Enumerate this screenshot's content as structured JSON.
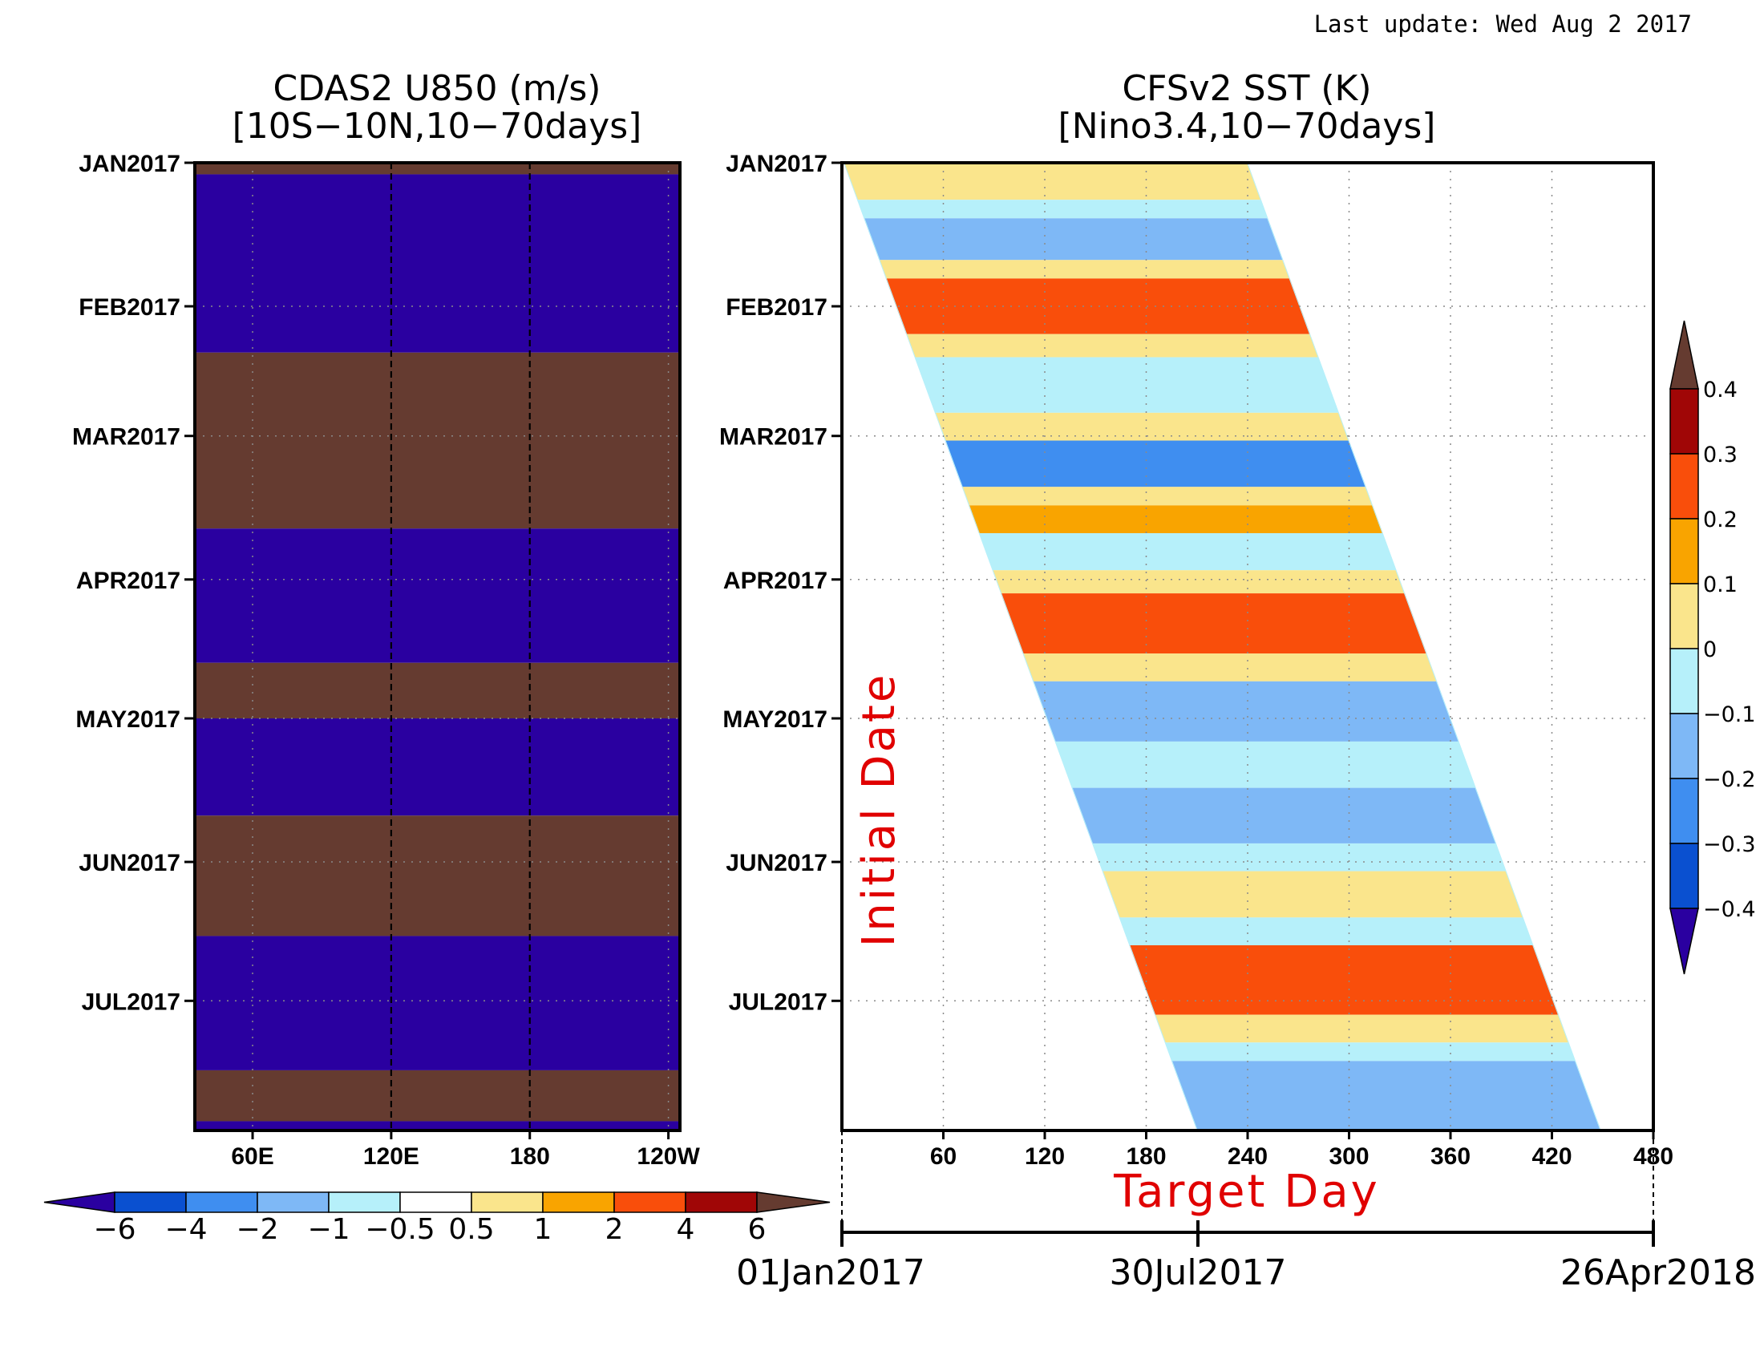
{
  "header": {
    "last_update": "Last update: Wed Aug 2 2017"
  },
  "left_panel": {
    "title_line1": "CDAS2 U850 (m/s)",
    "title_line2": "[10S−10N,10−70days]"
  },
  "right_panel": {
    "title_line1": "CFSv2 SST (K)",
    "title_line2": "[Nino3.4,10−70days]",
    "ylabel": "Initial Date",
    "xlabel": "Target Day",
    "date_axis": [
      "01Jan2017",
      "30Jul2017",
      "26Apr2018"
    ]
  },
  "colors": {
    "neg_dark": "#2a00a0",
    "pos_dark": "#653b30",
    "ylabel_red": "#e00000"
  },
  "chart_data": [
    {
      "type": "heatmap",
      "title": "CDAS2 U850 (m/s) [10S−10N,10−70days]",
      "xlabel": "",
      "ylabel": "",
      "x_tick_labels": [
        "60E",
        "120E",
        "180",
        "120W"
      ],
      "x_ticks_deg": [
        60,
        120,
        180,
        240
      ],
      "x_range_deg": [
        35,
        245
      ],
      "y_tick_labels": [
        "JAN2017",
        "FEB2017",
        "MAR2017",
        "APR2017",
        "MAY2017",
        "JUN2017",
        "JUL2017"
      ],
      "y_ticks_day": [
        0,
        31,
        59,
        90,
        120,
        151,
        181
      ],
      "y_range_day": [
        0,
        209
      ],
      "vertical_dashed_lines_deg": [
        120,
        180
      ],
      "bands": [
        {
          "from_day": 0,
          "to_day": 2.5,
          "value": 8
        },
        {
          "from_day": 2.5,
          "to_day": 41,
          "value": -8
        },
        {
          "from_day": 41,
          "to_day": 79,
          "value": 8
        },
        {
          "from_day": 79,
          "to_day": 108,
          "value": -8
        },
        {
          "from_day": 108,
          "to_day": 120,
          "value": 8
        },
        {
          "from_day": 120,
          "to_day": 141,
          "value": -8
        },
        {
          "from_day": 141,
          "to_day": 167,
          "value": 8
        },
        {
          "from_day": 167,
          "to_day": 196,
          "value": -8
        },
        {
          "from_day": 196,
          "to_day": 207,
          "value": 8
        },
        {
          "from_day": 207,
          "to_day": 209,
          "value": -8
        }
      ],
      "colorbar": {
        "orientation": "horizontal",
        "levels": [
          -6,
          -4,
          -2,
          -1,
          -0.5,
          0.5,
          1,
          2,
          4,
          6
        ],
        "tick_labels": [
          "−6",
          "−4",
          "−2",
          "−1",
          "−0.5",
          "0.5",
          "1",
          "2",
          "4",
          "6"
        ],
        "colors": [
          "#2a00a0",
          "#0a50d0",
          "#3f8ef0",
          "#7eb8f6",
          "#b6f0fa",
          "#ffffff",
          "#fae58c",
          "#f9a400",
          "#f94e0b",
          "#a00606",
          "#653b30"
        ]
      }
    },
    {
      "type": "heatmap",
      "title": "CFSv2 SST (K) [Nino3.4,10−70days]",
      "xlabel": "Target Day",
      "ylabel": "Initial Date",
      "x_tick_labels": [
        "60",
        "120",
        "180",
        "240",
        "300",
        "360",
        "420",
        "480"
      ],
      "x_ticks": [
        60,
        120,
        180,
        240,
        300,
        360,
        420,
        480
      ],
      "x_range": [
        0,
        480
      ],
      "y_tick_labels": [
        "JAN2017",
        "FEB2017",
        "MAR2017",
        "APR2017",
        "MAY2017",
        "JUN2017",
        "JUL2017"
      ],
      "y_ticks_day": [
        0,
        31,
        59,
        90,
        120,
        151,
        181
      ],
      "y_range_day": [
        0,
        209
      ],
      "forecast_band_offset_days": [
        1,
        240
      ],
      "band_anomaly_bands": [
        {
          "from_day": 0,
          "to_day": 8,
          "value": 0.02
        },
        {
          "from_day": 8,
          "to_day": 12,
          "value": -0.08
        },
        {
          "from_day": 12,
          "to_day": 21,
          "value": -0.15
        },
        {
          "from_day": 21,
          "to_day": 25,
          "value": 0.05
        },
        {
          "from_day": 25,
          "to_day": 37,
          "value": 0.22
        },
        {
          "from_day": 37,
          "to_day": 42,
          "value": 0.08
        },
        {
          "from_day": 42,
          "to_day": 54,
          "value": -0.08
        },
        {
          "from_day": 54,
          "to_day": 60,
          "value": 0.04
        },
        {
          "from_day": 60,
          "to_day": 70,
          "value": -0.25
        },
        {
          "from_day": 70,
          "to_day": 74,
          "value": 0.05
        },
        {
          "from_day": 74,
          "to_day": 80,
          "value": 0.15
        },
        {
          "from_day": 80,
          "to_day": 88,
          "value": -0.08
        },
        {
          "from_day": 88,
          "to_day": 93,
          "value": 0.04
        },
        {
          "from_day": 93,
          "to_day": 106,
          "value": 0.25
        },
        {
          "from_day": 106,
          "to_day": 112,
          "value": 0.05
        },
        {
          "from_day": 112,
          "to_day": 125,
          "value": -0.12
        },
        {
          "from_day": 125,
          "to_day": 135,
          "value": -0.06
        },
        {
          "from_day": 135,
          "to_day": 147,
          "value": -0.14
        },
        {
          "from_day": 147,
          "to_day": 153,
          "value": -0.05
        },
        {
          "from_day": 153,
          "to_day": 163,
          "value": 0.08
        },
        {
          "from_day": 163,
          "to_day": 169,
          "value": -0.04
        },
        {
          "from_day": 169,
          "to_day": 184,
          "value": 0.22
        },
        {
          "from_day": 184,
          "to_day": 190,
          "value": 0.04
        },
        {
          "from_day": 190,
          "to_day": 194,
          "value": -0.08
        },
        {
          "from_day": 194,
          "to_day": 209,
          "value": -0.2
        }
      ],
      "colorbar": {
        "orientation": "vertical",
        "levels": [
          -0.4,
          -0.3,
          -0.2,
          -0.1,
          0,
          0.1,
          0.2,
          0.3,
          0.4
        ],
        "tick_labels": [
          "−0.4",
          "−0.3",
          "−0.2",
          "−0.1",
          "0",
          "0.1",
          "0.2",
          "0.3",
          "0.4"
        ],
        "colors": [
          "#2a00a0",
          "#0a50d0",
          "#3f8ef0",
          "#7eb8f6",
          "#b6f0fa",
          "#fae58c",
          "#f9a400",
          "#f94e0b",
          "#a00606",
          "#653b30"
        ]
      }
    }
  ]
}
